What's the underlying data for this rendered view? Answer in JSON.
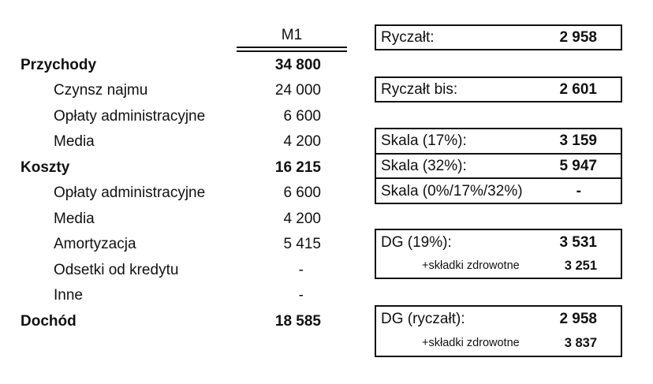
{
  "colors": {
    "background": "#ffffff",
    "text": "#111111",
    "border": "#111111"
  },
  "table": {
    "header": {
      "column": "M1"
    },
    "rows": [
      {
        "label": "Przychody",
        "value": "34 800",
        "bold": true,
        "indent": false
      },
      {
        "label": "Czynsz najmu",
        "value": "24 000",
        "bold": false,
        "indent": true
      },
      {
        "label": "Opłaty administracyjne",
        "value": "6 600",
        "bold": false,
        "indent": true
      },
      {
        "label": "Media",
        "value": "4 200",
        "bold": false,
        "indent": true
      },
      {
        "label": "Koszty",
        "value": "16 215",
        "bold": true,
        "indent": false
      },
      {
        "label": "Opłaty administracyjne",
        "value": "6 600",
        "bold": false,
        "indent": true
      },
      {
        "label": "Media",
        "value": "4 200",
        "bold": false,
        "indent": true
      },
      {
        "label": "Amortyzacja",
        "value": "5 415",
        "bold": false,
        "indent": true
      },
      {
        "label": "Odsetki od kredytu",
        "value": "-",
        "bold": false,
        "indent": true
      },
      {
        "label": "Inne",
        "value": "-",
        "bold": false,
        "indent": true
      },
      {
        "label": "Dochód",
        "value": "18 585",
        "bold": true,
        "indent": false
      }
    ]
  },
  "tax_boxes": [
    {
      "name": "ryczalt",
      "rows": [
        {
          "label": "Ryczałt:",
          "value": "2 958",
          "small": false
        }
      ]
    },
    {
      "name": "ryczalt-bis",
      "rows": [
        {
          "label": "Ryczałt bis:",
          "value": "2 601",
          "small": false
        }
      ]
    },
    {
      "name": "skala",
      "rows": [
        {
          "label": "Skala (17%):",
          "value": "3 159",
          "small": false
        },
        {
          "label": "Skala (32%):",
          "value": "5 947",
          "small": false
        },
        {
          "label": "Skala (0%/17%/32%)",
          "value": "-",
          "small": false
        }
      ]
    },
    {
      "name": "dg-19",
      "rows": [
        {
          "label": "DG (19%):",
          "value": "3 531",
          "small": false
        },
        {
          "label": "+składki zdrowotne",
          "value": "3 251",
          "small": true
        }
      ]
    },
    {
      "name": "dg-ryczalt",
      "rows": [
        {
          "label": "DG (ryczałt):",
          "value": "2 958",
          "small": false
        },
        {
          "label": "+składki zdrowotne",
          "value": "3 837",
          "small": true
        }
      ]
    }
  ]
}
